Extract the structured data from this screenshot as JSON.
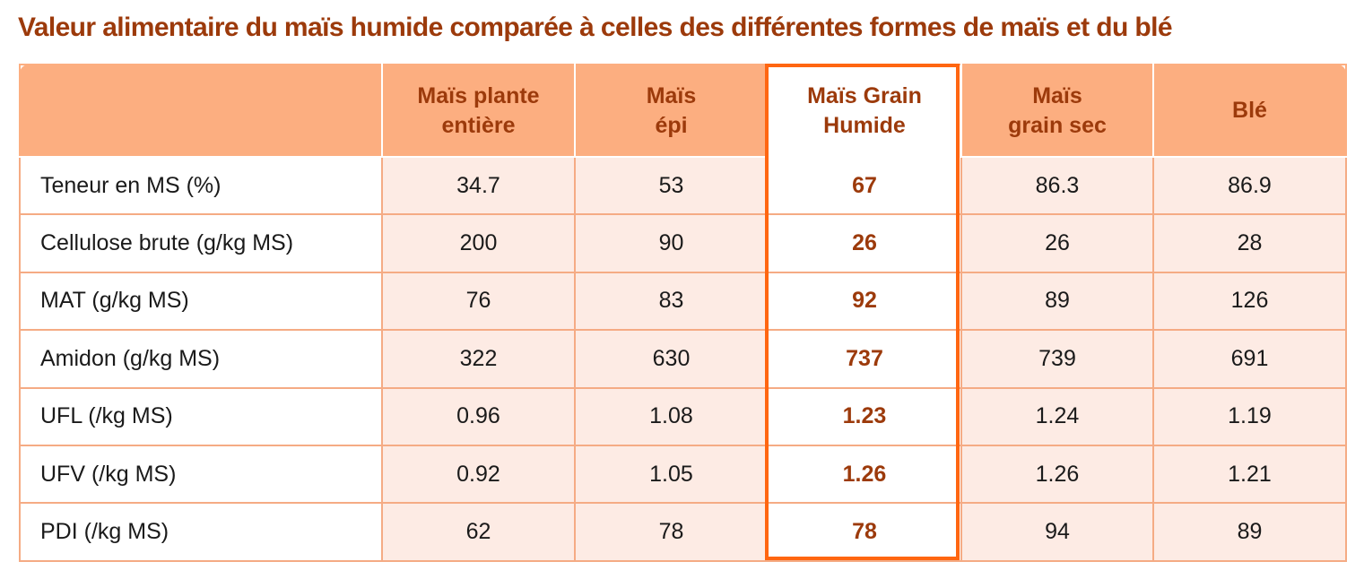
{
  "title": "Valeur alimentaire du maïs humide comparée à celles des différentes formes de maïs et du blé",
  "headers": [
    [
      "Maïs plante",
      "entière"
    ],
    [
      "Maïs",
      "épi"
    ],
    [
      "Maïs Grain",
      "Humide"
    ],
    [
      "Maïs",
      "grain sec"
    ],
    [
      "Blé"
    ]
  ],
  "rows": [
    {
      "label": "Teneur en MS (%)",
      "values": [
        "34.7",
        "53",
        "67",
        "86.3",
        "86.9"
      ]
    },
    {
      "label": "Cellulose brute (g/kg MS)",
      "values": [
        "200",
        "90",
        "26",
        "26",
        "28"
      ]
    },
    {
      "label": "MAT (g/kg MS)",
      "values": [
        "76",
        "83",
        "92",
        "89",
        "126"
      ]
    },
    {
      "label": "Amidon (g/kg MS)",
      "values": [
        "322",
        "630",
        "737",
        "739",
        "691"
      ]
    },
    {
      "label": "UFL (/kg MS)",
      "values": [
        "0.96",
        "1.08",
        "1.23",
        "1.24",
        "1.19"
      ]
    },
    {
      "label": "UFV (/kg MS)",
      "values": [
        "0.92",
        "1.05",
        "1.26",
        "1.26",
        "1.21"
      ]
    },
    {
      "label": "PDI (/kg MS)",
      "values": [
        "62",
        "78",
        "78",
        "94",
        "89"
      ]
    }
  ],
  "highlight_column": 2,
  "colors": {
    "header_bg": "#fcae80",
    "header_text": "#9c3a0b",
    "cell_bg": "#fdebe4",
    "highlight_border": "#ff6611",
    "title_color": "#9c3a0b"
  }
}
